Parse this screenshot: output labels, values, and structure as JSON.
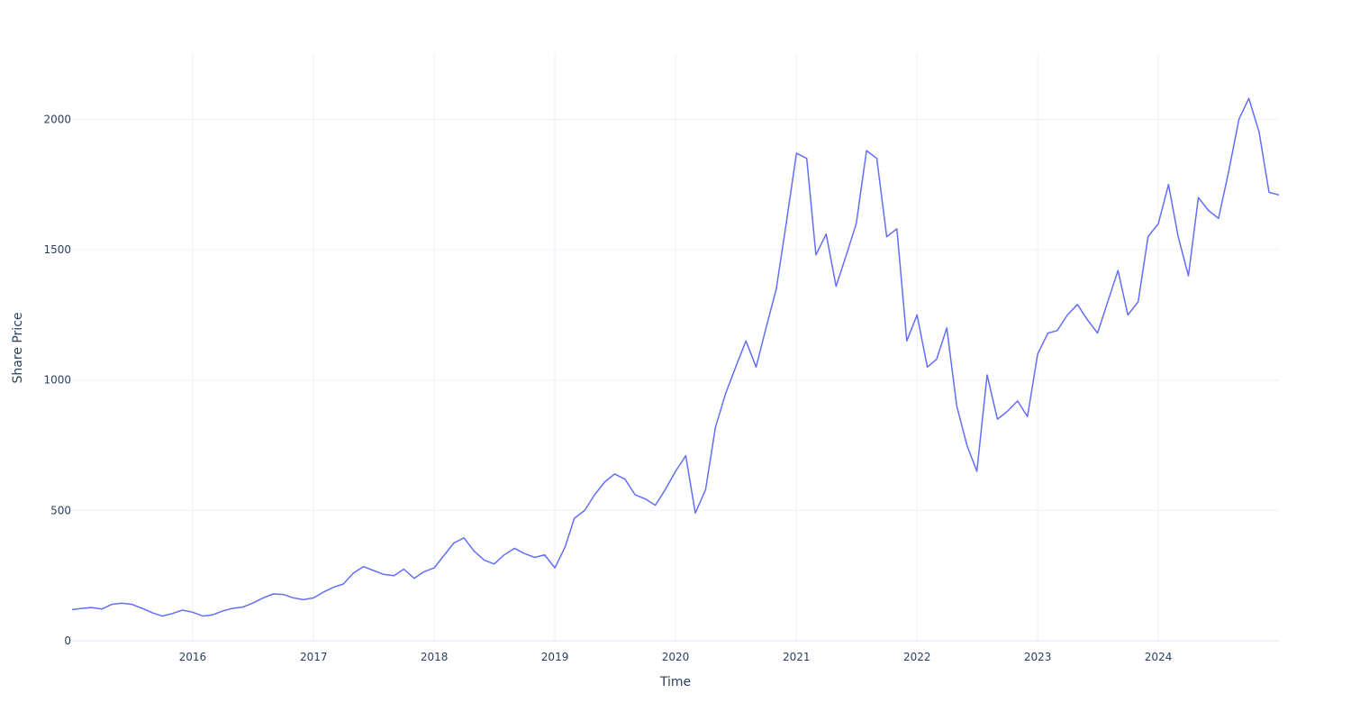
{
  "chart_data": {
    "type": "line",
    "title": "",
    "xlabel": "Time",
    "ylabel": "Share Price",
    "x_type": "date",
    "xlim": [
      "2015-01-01",
      "2024-12-31"
    ],
    "ylim": [
      -3,
      2250
    ],
    "grid": true,
    "legend": "none",
    "x_ticks": [
      {
        "value": "2016-01-01",
        "label": "2016"
      },
      {
        "value": "2017-01-01",
        "label": "2017"
      },
      {
        "value": "2018-01-01",
        "label": "2018"
      },
      {
        "value": "2019-01-01",
        "label": "2019"
      },
      {
        "value": "2020-01-01",
        "label": "2020"
      },
      {
        "value": "2021-01-01",
        "label": "2021"
      },
      {
        "value": "2022-01-01",
        "label": "2022"
      },
      {
        "value": "2023-01-01",
        "label": "2023"
      },
      {
        "value": "2024-01-01",
        "label": "2024"
      }
    ],
    "y_ticks": [
      0,
      500,
      1000,
      1500,
      2000
    ],
    "series": [
      {
        "color": "#636efa",
        "points": [
          [
            "2015-01-01",
            120
          ],
          [
            "2015-02-01",
            125
          ],
          [
            "2015-03-01",
            128
          ],
          [
            "2015-04-01",
            122
          ],
          [
            "2015-05-01",
            140
          ],
          [
            "2015-06-01",
            145
          ],
          [
            "2015-07-01",
            140
          ],
          [
            "2015-08-01",
            125
          ],
          [
            "2015-09-01",
            108
          ],
          [
            "2015-10-01",
            95
          ],
          [
            "2015-11-01",
            105
          ],
          [
            "2015-12-01",
            118
          ],
          [
            "2016-01-01",
            110
          ],
          [
            "2016-02-01",
            95
          ],
          [
            "2016-03-01",
            100
          ],
          [
            "2016-04-01",
            115
          ],
          [
            "2016-05-01",
            125
          ],
          [
            "2016-06-01",
            130
          ],
          [
            "2016-07-01",
            145
          ],
          [
            "2016-08-01",
            165
          ],
          [
            "2016-09-01",
            180
          ],
          [
            "2016-10-01",
            178
          ],
          [
            "2016-11-01",
            165
          ],
          [
            "2016-12-01",
            158
          ],
          [
            "2017-01-01",
            165
          ],
          [
            "2017-02-01",
            188
          ],
          [
            "2017-03-01",
            205
          ],
          [
            "2017-04-01",
            218
          ],
          [
            "2017-05-01",
            260
          ],
          [
            "2017-06-01",
            285
          ],
          [
            "2017-07-01",
            270
          ],
          [
            "2017-08-01",
            255
          ],
          [
            "2017-09-01",
            250
          ],
          [
            "2017-10-01",
            275
          ],
          [
            "2017-11-01",
            240
          ],
          [
            "2017-12-01",
            265
          ],
          [
            "2018-01-01",
            280
          ],
          [
            "2018-02-01",
            330
          ],
          [
            "2018-03-01",
            375
          ],
          [
            "2018-04-01",
            395
          ],
          [
            "2018-05-01",
            345
          ],
          [
            "2018-06-01",
            310
          ],
          [
            "2018-07-01",
            295
          ],
          [
            "2018-08-01",
            330
          ],
          [
            "2018-09-01",
            355
          ],
          [
            "2018-10-01",
            335
          ],
          [
            "2018-11-01",
            320
          ],
          [
            "2018-12-01",
            330
          ],
          [
            "2019-01-01",
            280
          ],
          [
            "2019-02-01",
            360
          ],
          [
            "2019-03-01",
            470
          ],
          [
            "2019-04-01",
            500
          ],
          [
            "2019-05-01",
            560
          ],
          [
            "2019-06-01",
            610
          ],
          [
            "2019-07-01",
            640
          ],
          [
            "2019-08-01",
            620
          ],
          [
            "2019-09-01",
            560
          ],
          [
            "2019-10-01",
            545
          ],
          [
            "2019-11-01",
            520
          ],
          [
            "2019-12-01",
            580
          ],
          [
            "2020-01-01",
            650
          ],
          [
            "2020-02-01",
            710
          ],
          [
            "2020-03-01",
            490
          ],
          [
            "2020-04-01",
            580
          ],
          [
            "2020-05-01",
            820
          ],
          [
            "2020-06-01",
            950
          ],
          [
            "2020-07-01",
            1050
          ],
          [
            "2020-08-01",
            1150
          ],
          [
            "2020-09-01",
            1050
          ],
          [
            "2020-10-01",
            1200
          ],
          [
            "2020-11-01",
            1350
          ],
          [
            "2020-12-01",
            1600
          ],
          [
            "2021-01-01",
            1870
          ],
          [
            "2021-02-01",
            1850
          ],
          [
            "2021-03-01",
            1480
          ],
          [
            "2021-04-01",
            1560
          ],
          [
            "2021-05-01",
            1360
          ],
          [
            "2021-06-01",
            1480
          ],
          [
            "2021-07-01",
            1600
          ],
          [
            "2021-08-01",
            1880
          ],
          [
            "2021-09-01",
            1850
          ],
          [
            "2021-10-01",
            1550
          ],
          [
            "2021-11-01",
            1580
          ],
          [
            "2021-12-01",
            1150
          ],
          [
            "2022-01-01",
            1250
          ],
          [
            "2022-02-01",
            1050
          ],
          [
            "2022-03-01",
            1080
          ],
          [
            "2022-04-01",
            1200
          ],
          [
            "2022-05-01",
            900
          ],
          [
            "2022-06-01",
            750
          ],
          [
            "2022-07-01",
            650
          ],
          [
            "2022-08-01",
            1020
          ],
          [
            "2022-09-01",
            850
          ],
          [
            "2022-10-01",
            880
          ],
          [
            "2022-11-01",
            920
          ],
          [
            "2022-12-01",
            860
          ],
          [
            "2023-01-01",
            1100
          ],
          [
            "2023-02-01",
            1180
          ],
          [
            "2023-03-01",
            1190
          ],
          [
            "2023-04-01",
            1250
          ],
          [
            "2023-05-01",
            1290
          ],
          [
            "2023-06-01",
            1230
          ],
          [
            "2023-07-01",
            1180
          ],
          [
            "2023-08-01",
            1300
          ],
          [
            "2023-09-01",
            1420
          ],
          [
            "2023-10-01",
            1250
          ],
          [
            "2023-11-01",
            1300
          ],
          [
            "2023-12-01",
            1550
          ],
          [
            "2024-01-01",
            1600
          ],
          [
            "2024-02-01",
            1750
          ],
          [
            "2024-03-01",
            1550
          ],
          [
            "2024-04-01",
            1400
          ],
          [
            "2024-05-01",
            1700
          ],
          [
            "2024-06-01",
            1650
          ],
          [
            "2024-07-01",
            1620
          ],
          [
            "2024-08-01",
            1800
          ],
          [
            "2024-09-01",
            2000
          ],
          [
            "2024-10-01",
            2080
          ],
          [
            "2024-11-01",
            1950
          ],
          [
            "2024-12-01",
            1720
          ],
          [
            "2024-12-31",
            1710
          ]
        ]
      }
    ]
  }
}
